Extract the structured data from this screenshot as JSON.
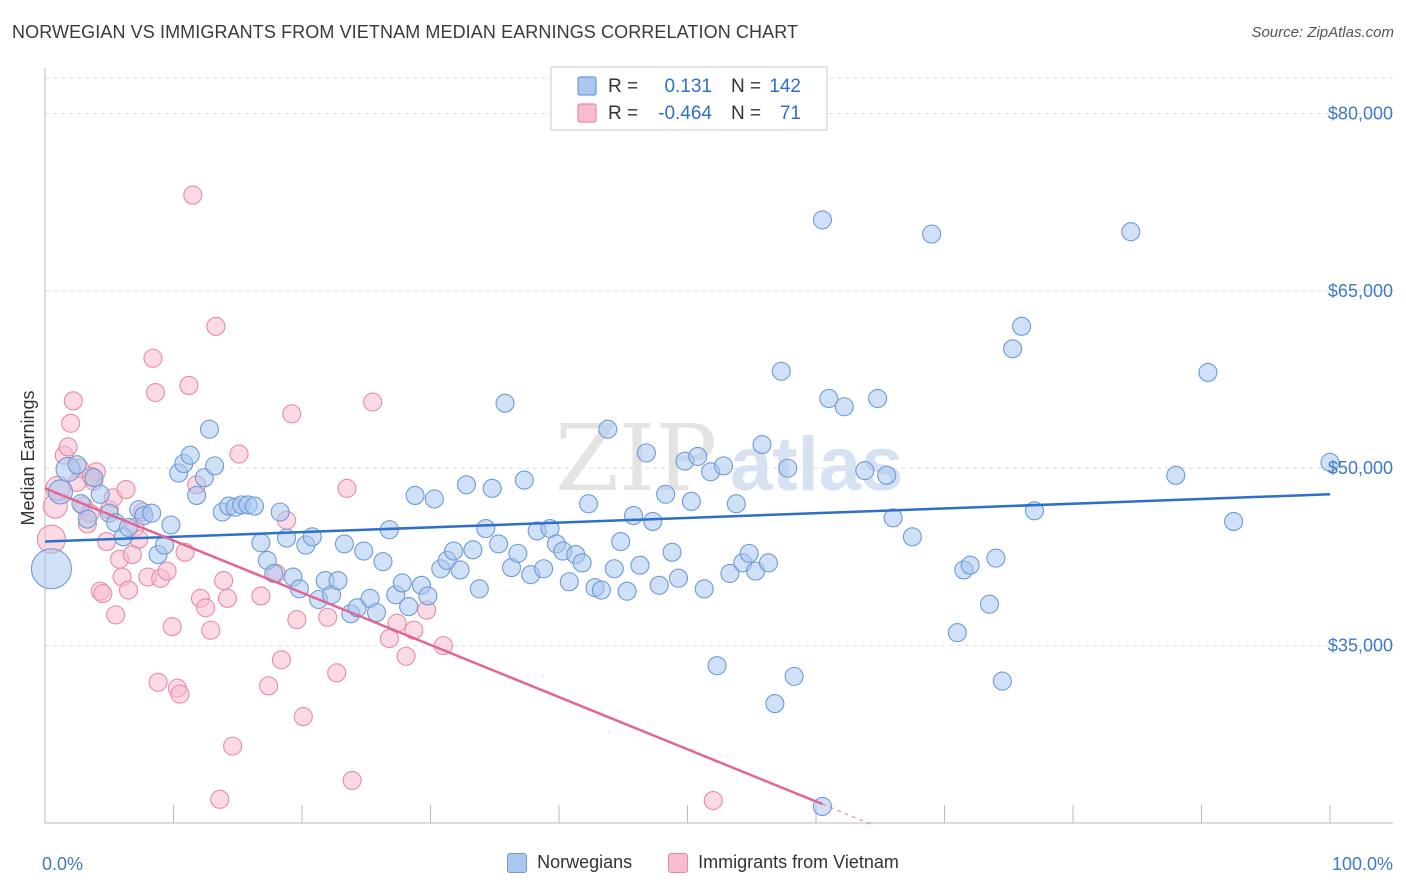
{
  "header": {
    "title": "NORWEGIAN VS IMMIGRANTS FROM VIETNAM MEDIAN EARNINGS CORRELATION CHART",
    "source": "Source: ZipAtlas.com"
  },
  "watermark": {
    "zip": "ZIP",
    "atlas": "atlas"
  },
  "legend_box": {
    "rows": [
      {
        "r_label": "R =",
        "r_value": "0.131",
        "n_label": "N =",
        "n_value": "142"
      },
      {
        "r_label": "R =",
        "r_value": "-0.464",
        "n_label": "N =",
        "n_value": "71"
      }
    ]
  },
  "legend_bottom": [
    {
      "label": "Norwegians"
    },
    {
      "label": "Immigrants from Vietnam"
    }
  ],
  "colors": {
    "blue_fill": "#a9c7ef",
    "blue_stroke": "#6d9bd6",
    "blue_line": "#2e6fcc",
    "pink_fill": "#f7bccd",
    "pink_stroke": "#e98aa8",
    "pink_line": "#e06693",
    "tick_label": "#3f79c9",
    "grid": "#dddddd"
  },
  "chart_data": {
    "type": "scatter",
    "title": "NORWEGIAN VS IMMIGRANTS FROM VIETNAM MEDIAN EARNINGS CORRELATION CHART",
    "xlabel": "",
    "ylabel": "Median Earnings",
    "xlim": [
      0,
      100
    ],
    "ylim": [
      20000,
      83000
    ],
    "x_tick_labels": [
      {
        "value": 0,
        "label": "0.0%"
      },
      {
        "value": 100,
        "label": "100.0%"
      }
    ],
    "y_ticks": [
      {
        "value": 35000,
        "label": "$35,000"
      },
      {
        "value": 50000,
        "label": "$50,000"
      },
      {
        "value": 65000,
        "label": "$65,000"
      },
      {
        "value": 80000,
        "label": "$80,000"
      }
    ],
    "series": [
      {
        "name": "Norwegians",
        "color": "#a9c7ef",
        "regression": {
          "x": [
            0,
            100
          ],
          "y": [
            43800,
            47800
          ]
        },
        "points": [
          [
            0.5,
            41500
          ],
          [
            1.2,
            48000
          ],
          [
            1.8,
            49900
          ],
          [
            2.5,
            50300
          ],
          [
            2.8,
            47000
          ],
          [
            3.3,
            45700
          ],
          [
            3.8,
            49200
          ],
          [
            4.3,
            47800
          ],
          [
            5.0,
            46200
          ],
          [
            5.5,
            45400
          ],
          [
            6.1,
            44200
          ],
          [
            6.5,
            45000
          ],
          [
            7.3,
            46500
          ],
          [
            7.7,
            46000
          ],
          [
            8.3,
            46200
          ],
          [
            8.8,
            42700
          ],
          [
            9.3,
            43500
          ],
          [
            9.8,
            45200
          ],
          [
            10.4,
            49600
          ],
          [
            10.8,
            50400
          ],
          [
            11.3,
            51100
          ],
          [
            11.8,
            47700
          ],
          [
            12.4,
            49200
          ],
          [
            12.8,
            53300
          ],
          [
            13.2,
            50200
          ],
          [
            13.8,
            46300
          ],
          [
            14.3,
            46800
          ],
          [
            14.8,
            46700
          ],
          [
            15.3,
            46900
          ],
          [
            15.8,
            46900
          ],
          [
            16.3,
            46800
          ],
          [
            16.8,
            43700
          ],
          [
            17.3,
            42200
          ],
          [
            17.8,
            41100
          ],
          [
            18.3,
            46300
          ],
          [
            18.8,
            44100
          ],
          [
            19.3,
            40800
          ],
          [
            19.8,
            39800
          ],
          [
            20.3,
            43500
          ],
          [
            20.8,
            44200
          ],
          [
            21.3,
            38900
          ],
          [
            21.8,
            40500
          ],
          [
            22.3,
            39300
          ],
          [
            22.8,
            40500
          ],
          [
            23.3,
            43600
          ],
          [
            23.8,
            37700
          ],
          [
            24.3,
            38200
          ],
          [
            24.8,
            43000
          ],
          [
            25.3,
            39000
          ],
          [
            25.8,
            37800
          ],
          [
            26.3,
            42100
          ],
          [
            26.8,
            44800
          ],
          [
            27.3,
            39300
          ],
          [
            27.8,
            40300
          ],
          [
            28.3,
            38300
          ],
          [
            28.8,
            47700
          ],
          [
            29.3,
            40100
          ],
          [
            29.8,
            39200
          ],
          [
            30.3,
            47400
          ],
          [
            30.8,
            41500
          ],
          [
            31.3,
            42200
          ],
          [
            31.8,
            43000
          ],
          [
            32.3,
            41400
          ],
          [
            32.8,
            48600
          ],
          [
            33.3,
            43100
          ],
          [
            33.8,
            39800
          ],
          [
            34.3,
            44900
          ],
          [
            34.8,
            48300
          ],
          [
            35.3,
            43600
          ],
          [
            35.8,
            55500
          ],
          [
            36.3,
            41600
          ],
          [
            36.8,
            42800
          ],
          [
            37.3,
            49000
          ],
          [
            37.8,
            41000
          ],
          [
            38.3,
            44700
          ],
          [
            38.8,
            41500
          ],
          [
            39.3,
            44900
          ],
          [
            39.8,
            43600
          ],
          [
            40.3,
            43000
          ],
          [
            40.8,
            40400
          ],
          [
            41.3,
            42700
          ],
          [
            41.8,
            42000
          ],
          [
            42.3,
            47000
          ],
          [
            42.8,
            39900
          ],
          [
            43.3,
            39700
          ],
          [
            43.8,
            53300
          ],
          [
            44.3,
            41500
          ],
          [
            44.8,
            43800
          ],
          [
            45.3,
            39600
          ],
          [
            45.8,
            46000
          ],
          [
            46.3,
            41800
          ],
          [
            46.8,
            51300
          ],
          [
            47.3,
            45500
          ],
          [
            47.8,
            40100
          ],
          [
            48.3,
            47800
          ],
          [
            48.8,
            42900
          ],
          [
            49.3,
            40700
          ],
          [
            49.8,
            50600
          ],
          [
            50.3,
            47200
          ],
          [
            50.8,
            51000
          ],
          [
            51.3,
            39800
          ],
          [
            51.8,
            49700
          ],
          [
            52.3,
            33300
          ],
          [
            52.8,
            50200
          ],
          [
            53.3,
            41100
          ],
          [
            53.8,
            47000
          ],
          [
            54.3,
            42000
          ],
          [
            54.8,
            42800
          ],
          [
            55.3,
            41300
          ],
          [
            55.8,
            52000
          ],
          [
            56.3,
            42000
          ],
          [
            56.8,
            30100
          ],
          [
            57.3,
            58200
          ],
          [
            57.8,
            50000
          ],
          [
            58.3,
            32400
          ],
          [
            60.5,
            71000
          ],
          [
            61.0,
            55900
          ],
          [
            62.2,
            55200
          ],
          [
            63.8,
            49800
          ],
          [
            64.8,
            55900
          ],
          [
            65.5,
            49400
          ],
          [
            66.0,
            45800
          ],
          [
            67.5,
            44200
          ],
          [
            69.0,
            69800
          ],
          [
            71.0,
            36100
          ],
          [
            71.5,
            41400
          ],
          [
            72.0,
            41800
          ],
          [
            73.5,
            38500
          ],
          [
            74.0,
            42400
          ],
          [
            74.5,
            32000
          ],
          [
            75.3,
            60100
          ],
          [
            76.0,
            62000
          ],
          [
            77.0,
            46400
          ],
          [
            84.5,
            70000
          ],
          [
            88.0,
            49400
          ],
          [
            90.5,
            58100
          ],
          [
            92.5,
            45500
          ],
          [
            100.0,
            50500
          ],
          [
            60.5,
            21400
          ]
        ]
      },
      {
        "name": "Immigrants from Vietnam",
        "color": "#f7bccd",
        "regression": {
          "x": [
            0,
            60.5
          ],
          "y": [
            48300,
            21600
          ]
        },
        "regression_dashed": {
          "x": [
            60.5,
            64.5
          ],
          "y": [
            21600,
            19800
          ]
        },
        "points": [
          [
            0.5,
            44000
          ],
          [
            0.8,
            46800
          ],
          [
            1.0,
            48300
          ],
          [
            1.5,
            51100
          ],
          [
            1.8,
            51800
          ],
          [
            2.0,
            53800
          ],
          [
            2.2,
            55700
          ],
          [
            2.5,
            48800
          ],
          [
            2.7,
            50000
          ],
          [
            3.0,
            46800
          ],
          [
            3.3,
            45300
          ],
          [
            3.5,
            46200
          ],
          [
            3.8,
            48900
          ],
          [
            4.0,
            49700
          ],
          [
            4.3,
            39600
          ],
          [
            4.5,
            39400
          ],
          [
            4.8,
            43800
          ],
          [
            5.0,
            46500
          ],
          [
            5.3,
            47500
          ],
          [
            5.5,
            37600
          ],
          [
            5.8,
            42300
          ],
          [
            6.0,
            40800
          ],
          [
            6.3,
            48200
          ],
          [
            6.5,
            39700
          ],
          [
            6.8,
            42700
          ],
          [
            7.0,
            45000
          ],
          [
            7.3,
            44000
          ],
          [
            7.6,
            46300
          ],
          [
            8.0,
            40800
          ],
          [
            8.4,
            59300
          ],
          [
            8.6,
            56400
          ],
          [
            8.8,
            31900
          ],
          [
            9.0,
            40700
          ],
          [
            9.5,
            41300
          ],
          [
            9.9,
            36600
          ],
          [
            10.3,
            31400
          ],
          [
            10.5,
            30900
          ],
          [
            10.9,
            42900
          ],
          [
            11.2,
            57000
          ],
          [
            11.5,
            73100
          ],
          [
            11.8,
            48600
          ],
          [
            12.1,
            39000
          ],
          [
            12.5,
            38200
          ],
          [
            12.9,
            36300
          ],
          [
            13.3,
            62000
          ],
          [
            13.6,
            22000
          ],
          [
            13.9,
            40500
          ],
          [
            14.2,
            39000
          ],
          [
            14.6,
            26500
          ],
          [
            15.1,
            51200
          ],
          [
            16.8,
            39200
          ],
          [
            17.4,
            31600
          ],
          [
            18.0,
            41100
          ],
          [
            18.4,
            33800
          ],
          [
            18.8,
            45600
          ],
          [
            19.2,
            54600
          ],
          [
            19.6,
            37200
          ],
          [
            20.1,
            29000
          ],
          [
            22.0,
            37400
          ],
          [
            22.7,
            32700
          ],
          [
            23.5,
            48300
          ],
          [
            23.9,
            23600
          ],
          [
            25.5,
            55600
          ],
          [
            26.8,
            35600
          ],
          [
            27.4,
            36900
          ],
          [
            28.1,
            34100
          ],
          [
            28.7,
            36300
          ],
          [
            29.7,
            38000
          ],
          [
            31.0,
            35000
          ],
          [
            52.0,
            21900
          ],
          [
            3.6,
            49300
          ]
        ]
      }
    ]
  }
}
